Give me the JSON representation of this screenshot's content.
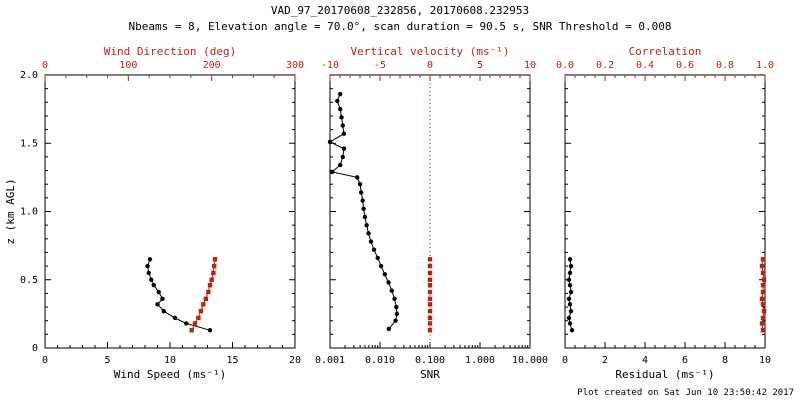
{
  "header": {
    "title": "VAD_97_20170608_232856, 20170608.232953",
    "subtitle": "Nbeams = 8, Elevation angle = 70.0°, scan duration = 90.5 s, SNR Threshold = 0.008"
  },
  "footer": {
    "credit": "Plot created on Sat Jun 10 23:50:42 2017"
  },
  "colors": {
    "black": "#000000",
    "red": "#bb2211",
    "background": "#ffffff"
  },
  "chart_data": [
    {
      "type": "line",
      "panel": "wind",
      "y": {
        "label": "z (km AGL)",
        "range": [
          0,
          2
        ],
        "ticks": [
          0,
          0.5,
          1,
          1.5,
          2
        ],
        "tick_labels": [
          "0",
          "0.5",
          "1.0",
          "1.5",
          "2.0"
        ],
        "minor": 5,
        "show_labels": true
      },
      "x_bottom": {
        "label": "Wind Speed (ms⁻¹)",
        "range": [
          0,
          20
        ],
        "ticks": [
          0,
          5,
          10,
          15,
          20
        ],
        "tick_labels": [
          "0",
          "5",
          "10",
          "15",
          "20"
        ],
        "minor": 5,
        "color": "black"
      },
      "x_top": {
        "label": "Wind Direction (deg)",
        "range": [
          0,
          300
        ],
        "ticks": [
          0,
          100,
          200,
          300
        ],
        "tick_labels": [
          "0",
          "100",
          "200",
          "300"
        ],
        "minor": 4,
        "color": "red"
      },
      "series": [
        {
          "name": "wind-speed",
          "axis": "bottom",
          "color": "black",
          "marker": "circle",
          "line": true,
          "points": [
            [
              13.2,
              0.13
            ],
            [
              11.3,
              0.18
            ],
            [
              10.4,
              0.22
            ],
            [
              9.5,
              0.27
            ],
            [
              9.0,
              0.32
            ],
            [
              9.4,
              0.36
            ],
            [
              9.1,
              0.41
            ],
            [
              8.7,
              0.46
            ],
            [
              8.5,
              0.5
            ],
            [
              8.3,
              0.55
            ],
            [
              8.2,
              0.6
            ],
            [
              8.4,
              0.65
            ]
          ]
        },
        {
          "name": "wind-direction",
          "axis": "top",
          "color": "red",
          "marker": "square",
          "line": true,
          "points": [
            [
              176,
              0.13
            ],
            [
              180,
              0.18
            ],
            [
              184,
              0.22
            ],
            [
              187,
              0.27
            ],
            [
              190,
              0.32
            ],
            [
              193,
              0.36
            ],
            [
              196,
              0.41
            ],
            [
              198,
              0.46
            ],
            [
              200,
              0.5
            ],
            [
              202,
              0.55
            ],
            [
              203,
              0.6
            ],
            [
              204,
              0.65
            ]
          ]
        }
      ]
    },
    {
      "type": "line",
      "panel": "snr",
      "y": {
        "label": "",
        "range": [
          0,
          2
        ],
        "ticks": [
          0,
          0.5,
          1,
          1.5,
          2
        ],
        "tick_labels": [
          "",
          "",
          "",
          "",
          ""
        ],
        "minor": 5,
        "show_labels": false
      },
      "x_bottom": {
        "label": "SNR",
        "scale": "log",
        "range": [
          0.001,
          10
        ],
        "ticks": [
          0.001,
          0.01,
          0.1,
          1,
          10
        ],
        "tick_labels": [
          "0.001",
          "0.010",
          "0.100",
          "1.000",
          "10.000"
        ],
        "color": "black"
      },
      "x_top": {
        "label": "Vertical velocity (ms⁻¹)",
        "range": [
          -10,
          10
        ],
        "ticks": [
          -10,
          -5,
          0,
          5,
          10
        ],
        "tick_labels": [
          "-10",
          "-5",
          "0",
          "5",
          "10"
        ],
        "minor": 5,
        "color": "red"
      },
      "series": [
        {
          "name": "zero-velocity-line",
          "type": "vline",
          "axis": "top",
          "x": 0,
          "color": "red",
          "style": "dotted"
        },
        {
          "name": "snr-profile",
          "axis": "bottom",
          "color": "black",
          "marker": "circle",
          "line": true,
          "points": [
            [
              0.0016,
              1.86
            ],
            [
              0.0014,
              1.81
            ],
            [
              0.0016,
              1.75
            ],
            [
              0.0017,
              1.69
            ],
            [
              0.0018,
              1.63
            ],
            [
              0.0019,
              1.57
            ],
            [
              0.001,
              1.51
            ],
            [
              0.0019,
              1.46
            ],
            [
              0.0018,
              1.4
            ],
            [
              0.0016,
              1.34
            ],
            [
              0.0011,
              1.29
            ],
            [
              0.0035,
              1.25
            ],
            [
              0.004,
              1.2
            ],
            [
              0.0042,
              1.14
            ],
            [
              0.0045,
              1.08
            ],
            [
              0.0047,
              1.02
            ],
            [
              0.005,
              0.96
            ],
            [
              0.0054,
              0.9
            ],
            [
              0.0059,
              0.84
            ],
            [
              0.0066,
              0.78
            ],
            [
              0.0076,
              0.72
            ],
            [
              0.009,
              0.66
            ],
            [
              0.0105,
              0.6
            ],
            [
              0.0125,
              0.54
            ],
            [
              0.0148,
              0.48
            ],
            [
              0.0172,
              0.42
            ],
            [
              0.0195,
              0.36
            ],
            [
              0.0212,
              0.3
            ],
            [
              0.0218,
              0.25
            ],
            [
              0.0205,
              0.2
            ],
            [
              0.015,
              0.14
            ]
          ]
        },
        {
          "name": "vertical-velocity",
          "axis": "top",
          "color": "red",
          "marker": "square",
          "line": false,
          "points": [
            [
              0,
              0.13
            ],
            [
              0,
              0.18
            ],
            [
              0,
              0.22
            ],
            [
              0,
              0.27
            ],
            [
              0,
              0.32
            ],
            [
              0,
              0.36
            ],
            [
              0,
              0.41
            ],
            [
              0,
              0.46
            ],
            [
              0,
              0.5
            ],
            [
              0,
              0.55
            ],
            [
              0,
              0.6
            ],
            [
              0,
              0.65
            ]
          ]
        }
      ]
    },
    {
      "type": "line",
      "panel": "residual",
      "y": {
        "label": "",
        "range": [
          0,
          2
        ],
        "ticks": [
          0,
          0.5,
          1,
          1.5,
          2
        ],
        "tick_labels": [
          "",
          "",
          "",
          "",
          ""
        ],
        "minor": 5,
        "show_labels": false
      },
      "x_bottom": {
        "label": "Residual (ms⁻¹)",
        "range": [
          0,
          10
        ],
        "ticks": [
          0,
          2,
          4,
          6,
          8,
          10
        ],
        "tick_labels": [
          "0",
          "2",
          "4",
          "6",
          "8",
          "10"
        ],
        "minor": 4,
        "color": "black"
      },
      "x_top": {
        "label": "Correlation",
        "range": [
          0,
          1
        ],
        "ticks": [
          0,
          0.2,
          0.4,
          0.6,
          0.8,
          1.0
        ],
        "tick_labels": [
          "0.0",
          "0.2",
          "0.4",
          "0.6",
          "0.8",
          "1.0"
        ],
        "minor": 4,
        "color": "red"
      },
      "series": [
        {
          "name": "residual",
          "axis": "bottom",
          "color": "black",
          "marker": "circle",
          "line": true,
          "points": [
            [
              0.35,
              0.13
            ],
            [
              0.25,
              0.18
            ],
            [
              0.2,
              0.22
            ],
            [
              0.3,
              0.27
            ],
            [
              0.25,
              0.32
            ],
            [
              0.2,
              0.36
            ],
            [
              0.3,
              0.41
            ],
            [
              0.25,
              0.46
            ],
            [
              0.2,
              0.5
            ],
            [
              0.25,
              0.55
            ],
            [
              0.3,
              0.6
            ],
            [
              0.25,
              0.65
            ]
          ]
        },
        {
          "name": "correlation",
          "axis": "top",
          "color": "red",
          "marker": "square",
          "line": true,
          "points": [
            [
              0.99,
              0.13
            ],
            [
              0.985,
              0.18
            ],
            [
              0.99,
              0.22
            ],
            [
              0.995,
              0.27
            ],
            [
              0.99,
              0.32
            ],
            [
              0.985,
              0.36
            ],
            [
              0.99,
              0.41
            ],
            [
              0.99,
              0.46
            ],
            [
              0.995,
              0.5
            ],
            [
              0.99,
              0.55
            ],
            [
              0.985,
              0.6
            ],
            [
              0.99,
              0.65
            ]
          ]
        }
      ]
    }
  ]
}
